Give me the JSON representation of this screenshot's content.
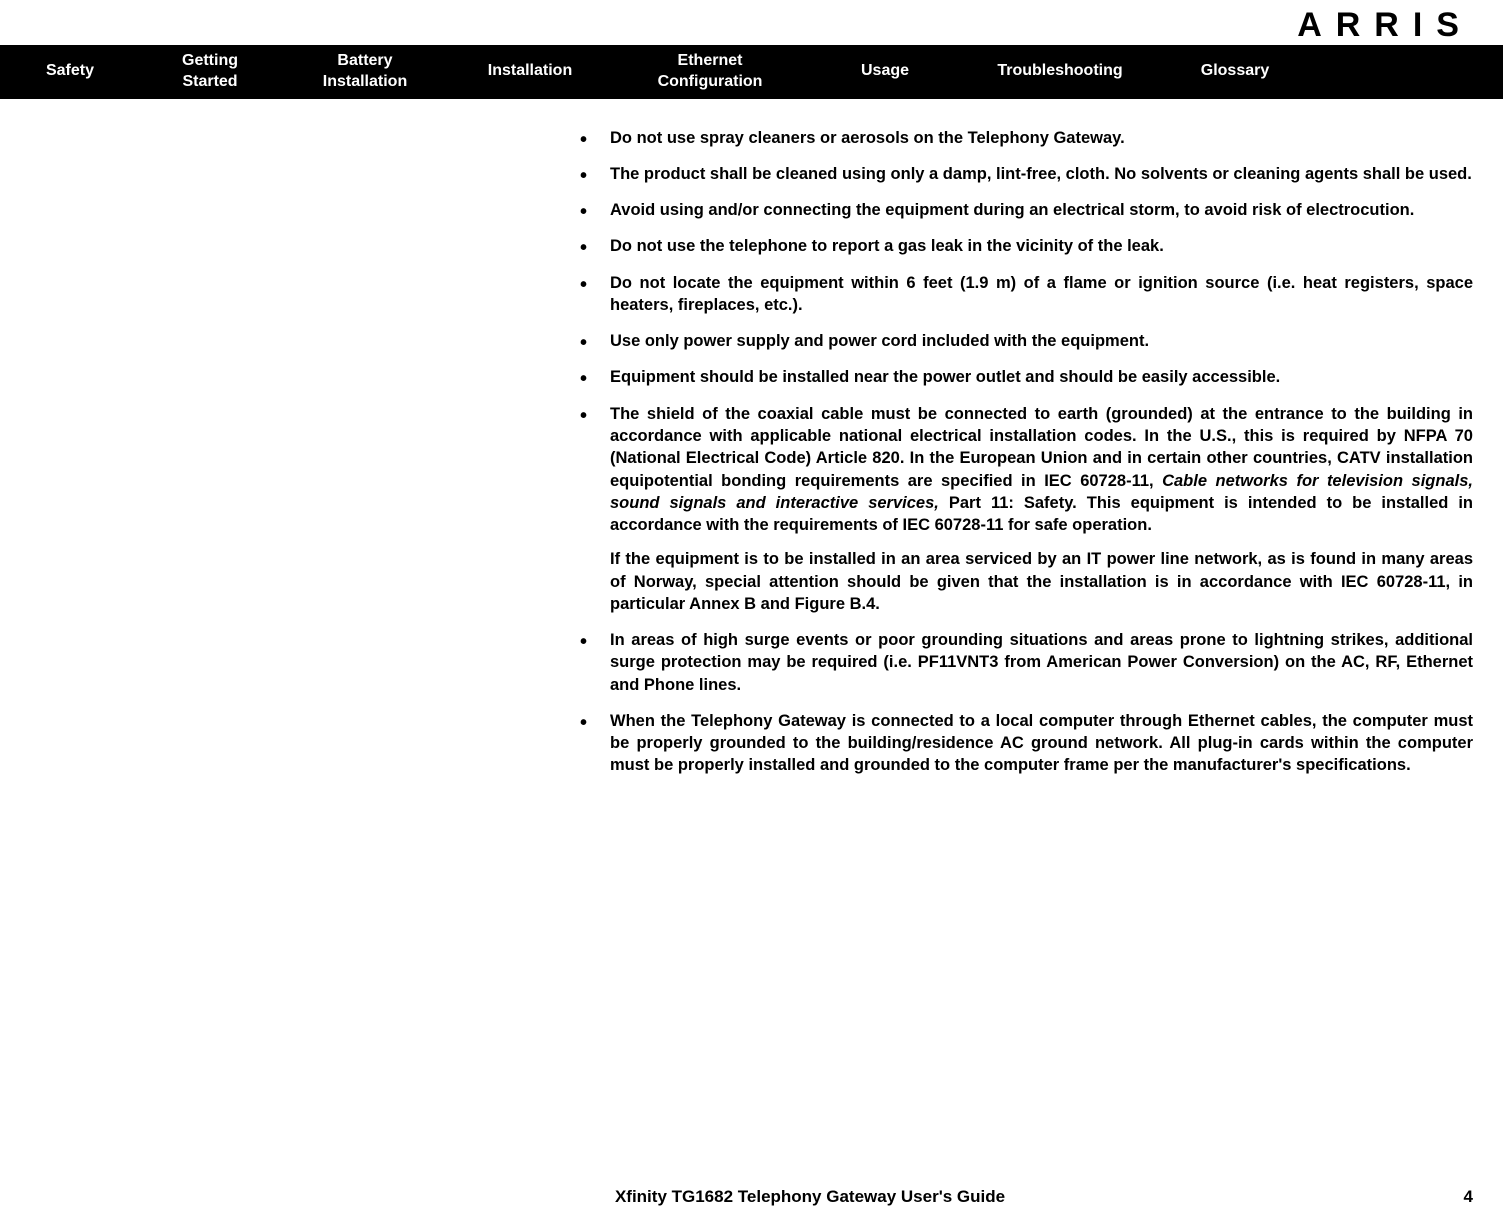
{
  "brand": "ARRIS",
  "nav": {
    "safety": "Safety",
    "getting_l1": "Getting",
    "getting_l2": "Started",
    "battery_l1": "Battery",
    "battery_l2": "Installation",
    "installation": "Installation",
    "ethernet_l1": "Ethernet",
    "ethernet_l2": "Configuration",
    "usage": "Usage",
    "troubleshooting": "Troubleshooting",
    "glossary": "Glossary"
  },
  "bullets": {
    "b1": "Do not use spray cleaners or aerosols on the Telephony Gateway.",
    "b2": "The product shall be cleaned using only a damp, lint-free, cloth. No solvents or cleaning agents shall be used.",
    "b3": "Avoid using and/or connecting the equipment during an electrical storm, to avoid risk of electrocution.",
    "b4": "Do not use the telephone to report a gas leak in the vicinity of the leak.",
    "b5": "Do not locate the equipment within 6 feet (1.9 m) of a flame or ignition source (i.e. heat registers, space heaters, fireplaces, etc.).",
    "b6": "Use only power supply and power cord included with the equipment.",
    "b7": "Equipment should be installed near the power outlet and should be easily accessible.",
    "b8_p1a": "The shield of the coaxial cable must be connected to earth (grounded) at the entrance to the building in accordance with applicable national electrical installation codes. In the U.S., this is required by NFPA 70 (National Electrical Code) Article 820. In the European Union and in certain other countries, CATV installation equipotential bonding requirements are specified in IEC 60728-11, ",
    "b8_p1_italic": "Cable networks for television signals, sound signals and interactive services,",
    "b8_p1b": " Part 11: Safety. This equipment is intended to be installed in accordance with the requirements of IEC 60728-11 for safe operation.",
    "b8_p2": "If the equipment is to be installed in an area serviced by an IT power line network, as is found in many areas of Norway, special attention should be given that the installation is in accordance with IEC 60728-11, in particular Annex B and Figure B.4.",
    "b9": "In areas of high surge events or poor grounding situations and areas prone to lightning strikes, additional surge protection may be required (i.e. PF11VNT3 from American Power Conversion) on the AC, RF, Ethernet and Phone lines.",
    "b10": "When the Telephony Gateway is connected to a local computer through Ethernet cables, the computer must be properly grounded to the building/residence AC ground network. All plug-in cards within the computer must be properly installed and grounded to the computer frame per the manufacturer's specifications."
  },
  "footer": {
    "title": "Xfinity TG1682 Telephony Gateway User's Guide",
    "page": "4"
  }
}
